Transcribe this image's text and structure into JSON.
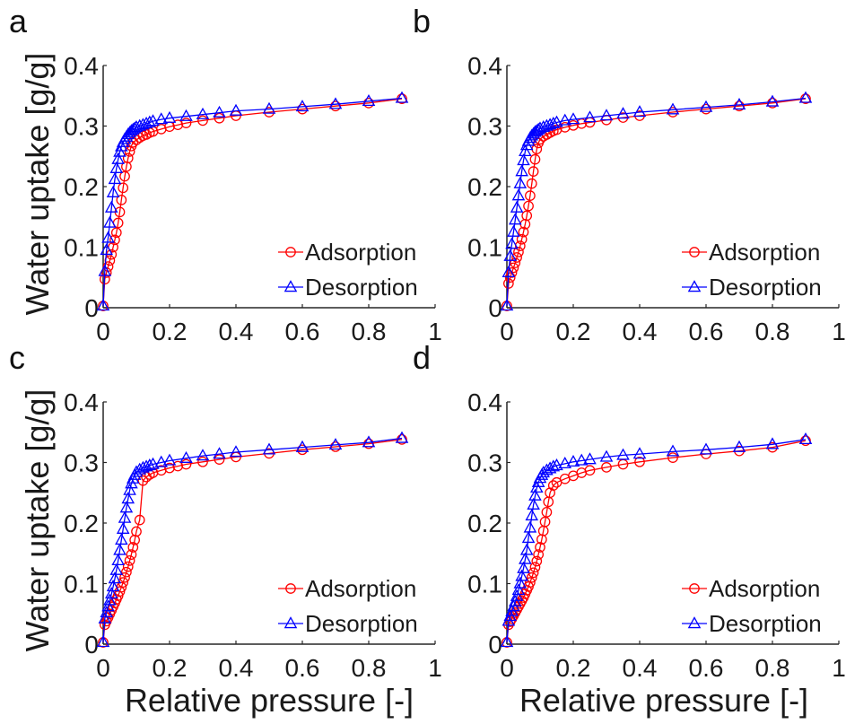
{
  "chart_data": [
    {
      "panel_label": "a",
      "type": "line",
      "xlim": [
        0,
        1
      ],
      "ylim": [
        0,
        0.4
      ],
      "xticks": [
        "0",
        "0.2",
        "0.4",
        "0.6",
        "0.8",
        "1"
      ],
      "yticks": [
        "0",
        "0.1",
        "0.2",
        "0.3",
        "0.4"
      ],
      "xlabel": "",
      "ylabel": "Water uptake [g/g]",
      "legend": "bottom-right",
      "series": [
        {
          "name": "Adsorption",
          "color": "#ff0000",
          "marker": "circle",
          "x": [
            0,
            0.005,
            0.01,
            0.015,
            0.02,
            0.025,
            0.03,
            0.035,
            0.04,
            0.045,
            0.05,
            0.055,
            0.06,
            0.065,
            0.07,
            0.075,
            0.08,
            0.085,
            0.09,
            0.1,
            0.11,
            0.12,
            0.13,
            0.14,
            0.15,
            0.175,
            0.2,
            0.225,
            0.25,
            0.3,
            0.35,
            0.4,
            0.5,
            0.6,
            0.7,
            0.8,
            0.9
          ],
          "y": [
            0.003,
            0.047,
            0.058,
            0.068,
            0.078,
            0.088,
            0.1,
            0.112,
            0.124,
            0.14,
            0.158,
            0.178,
            0.198,
            0.217,
            0.233,
            0.247,
            0.258,
            0.267,
            0.273,
            0.277,
            0.281,
            0.284,
            0.286,
            0.289,
            0.291,
            0.295,
            0.299,
            0.302,
            0.305,
            0.309,
            0.313,
            0.317,
            0.323,
            0.328,
            0.333,
            0.338,
            0.345
          ]
        },
        {
          "name": "Desorption",
          "color": "#0000ff",
          "marker": "triangle",
          "x": [
            0.9,
            0.8,
            0.7,
            0.6,
            0.5,
            0.4,
            0.35,
            0.3,
            0.25,
            0.2,
            0.175,
            0.15,
            0.14,
            0.13,
            0.12,
            0.11,
            0.1,
            0.095,
            0.09,
            0.085,
            0.08,
            0.075,
            0.07,
            0.065,
            0.06,
            0.055,
            0.05,
            0.045,
            0.04,
            0.035,
            0.03,
            0.025,
            0.02,
            0.015,
            0.01,
            0.005,
            0
          ],
          "y": [
            0.346,
            0.341,
            0.336,
            0.332,
            0.328,
            0.325,
            0.322,
            0.319,
            0.316,
            0.313,
            0.311,
            0.308,
            0.306,
            0.304,
            0.302,
            0.3,
            0.298,
            0.296,
            0.294,
            0.292,
            0.289,
            0.286,
            0.282,
            0.278,
            0.273,
            0.266,
            0.257,
            0.245,
            0.23,
            0.212,
            0.19,
            0.165,
            0.14,
            0.115,
            0.095,
            0.06,
            0.003
          ]
        }
      ]
    },
    {
      "panel_label": "b",
      "type": "line",
      "xlim": [
        0,
        1
      ],
      "ylim": [
        0,
        0.4
      ],
      "xticks": [
        "0",
        "0.2",
        "0.4",
        "0.6",
        "0.8",
        "1"
      ],
      "yticks": [
        "0",
        "0.1",
        "0.2",
        "0.3",
        "0.4"
      ],
      "xlabel": "",
      "ylabel": "",
      "legend": "bottom-right",
      "series": [
        {
          "name": "Adsorption",
          "color": "#ff0000",
          "marker": "circle",
          "x": [
            0,
            0.005,
            0.01,
            0.015,
            0.02,
            0.025,
            0.03,
            0.035,
            0.04,
            0.045,
            0.05,
            0.055,
            0.06,
            0.065,
            0.07,
            0.075,
            0.08,
            0.085,
            0.09,
            0.095,
            0.1,
            0.11,
            0.12,
            0.13,
            0.14,
            0.15,
            0.175,
            0.2,
            0.225,
            0.25,
            0.3,
            0.35,
            0.4,
            0.5,
            0.6,
            0.7,
            0.8,
            0.9
          ],
          "y": [
            0.003,
            0.04,
            0.05,
            0.058,
            0.066,
            0.074,
            0.083,
            0.092,
            0.102,
            0.113,
            0.125,
            0.138,
            0.152,
            0.168,
            0.185,
            0.205,
            0.225,
            0.245,
            0.262,
            0.272,
            0.278,
            0.283,
            0.286,
            0.289,
            0.292,
            0.294,
            0.298,
            0.301,
            0.304,
            0.306,
            0.31,
            0.314,
            0.317,
            0.323,
            0.328,
            0.333,
            0.338,
            0.345
          ]
        },
        {
          "name": "Desorption",
          "color": "#0000ff",
          "marker": "triangle",
          "x": [
            0.9,
            0.8,
            0.7,
            0.6,
            0.5,
            0.4,
            0.35,
            0.3,
            0.25,
            0.2,
            0.175,
            0.15,
            0.14,
            0.13,
            0.12,
            0.11,
            0.1,
            0.095,
            0.09,
            0.085,
            0.08,
            0.075,
            0.07,
            0.065,
            0.06,
            0.055,
            0.05,
            0.045,
            0.04,
            0.035,
            0.03,
            0.025,
            0.02,
            0.015,
            0.01,
            0.005,
            0
          ],
          "y": [
            0.346,
            0.34,
            0.335,
            0.331,
            0.327,
            0.323,
            0.32,
            0.317,
            0.314,
            0.311,
            0.309,
            0.306,
            0.304,
            0.302,
            0.3,
            0.298,
            0.296,
            0.294,
            0.292,
            0.29,
            0.287,
            0.284,
            0.28,
            0.275,
            0.268,
            0.258,
            0.243,
            0.225,
            0.205,
            0.185,
            0.165,
            0.145,
            0.125,
            0.105,
            0.085,
            0.058,
            0.003
          ]
        }
      ]
    },
    {
      "panel_label": "c",
      "type": "line",
      "xlim": [
        0,
        1
      ],
      "ylim": [
        0,
        0.4
      ],
      "xticks": [
        "0",
        "0.2",
        "0.4",
        "0.6",
        "0.8",
        "1"
      ],
      "yticks": [
        "0",
        "0.1",
        "0.2",
        "0.3",
        "0.4"
      ],
      "xlabel": "Relative pressure [-]",
      "ylabel": "Water uptake [g/g]",
      "legend": "bottom-right",
      "series": [
        {
          "name": "Adsorption",
          "color": "#ff0000",
          "marker": "circle",
          "x": [
            0,
            0.005,
            0.01,
            0.015,
            0.02,
            0.025,
            0.03,
            0.035,
            0.04,
            0.045,
            0.05,
            0.055,
            0.06,
            0.065,
            0.07,
            0.075,
            0.08,
            0.085,
            0.09,
            0.095,
            0.1,
            0.11,
            0.12,
            0.13,
            0.14,
            0.15,
            0.175,
            0.2,
            0.225,
            0.25,
            0.3,
            0.35,
            0.4,
            0.5,
            0.6,
            0.7,
            0.8,
            0.9
          ],
          "y": [
            0.003,
            0.032,
            0.038,
            0.044,
            0.05,
            0.056,
            0.062,
            0.068,
            0.074,
            0.08,
            0.087,
            0.094,
            0.102,
            0.11,
            0.119,
            0.128,
            0.138,
            0.148,
            0.16,
            0.172,
            0.186,
            0.205,
            0.27,
            0.276,
            0.28,
            0.283,
            0.287,
            0.291,
            0.294,
            0.297,
            0.301,
            0.305,
            0.309,
            0.315,
            0.321,
            0.326,
            0.331,
            0.338
          ]
        },
        {
          "name": "Desorption",
          "color": "#0000ff",
          "marker": "triangle",
          "x": [
            0.9,
            0.8,
            0.7,
            0.6,
            0.5,
            0.4,
            0.35,
            0.3,
            0.25,
            0.2,
            0.175,
            0.15,
            0.14,
            0.13,
            0.12,
            0.11,
            0.1,
            0.095,
            0.09,
            0.085,
            0.08,
            0.075,
            0.07,
            0.065,
            0.06,
            0.055,
            0.05,
            0.045,
            0.04,
            0.035,
            0.03,
            0.025,
            0.02,
            0.015,
            0.01,
            0.005,
            0
          ],
          "y": [
            0.34,
            0.333,
            0.329,
            0.325,
            0.321,
            0.317,
            0.314,
            0.311,
            0.307,
            0.303,
            0.3,
            0.297,
            0.295,
            0.293,
            0.291,
            0.288,
            0.284,
            0.279,
            0.273,
            0.265,
            0.254,
            0.24,
            0.225,
            0.208,
            0.19,
            0.172,
            0.155,
            0.138,
            0.122,
            0.108,
            0.095,
            0.083,
            0.072,
            0.062,
            0.052,
            0.042,
            0.003
          ]
        }
      ]
    },
    {
      "panel_label": "d",
      "type": "line",
      "xlim": [
        0,
        1
      ],
      "ylim": [
        0,
        0.4
      ],
      "xticks": [
        "0",
        "0.2",
        "0.4",
        "0.6",
        "0.8",
        "1"
      ],
      "yticks": [
        "0",
        "0.1",
        "0.2",
        "0.3",
        "0.4"
      ],
      "xlabel": "Relative pressure [-]",
      "ylabel": "",
      "legend": "bottom-right",
      "series": [
        {
          "name": "Adsorption",
          "color": "#ff0000",
          "marker": "circle",
          "x": [
            0,
            0.005,
            0.01,
            0.015,
            0.02,
            0.025,
            0.03,
            0.035,
            0.04,
            0.045,
            0.05,
            0.055,
            0.06,
            0.065,
            0.07,
            0.075,
            0.08,
            0.085,
            0.09,
            0.095,
            0.1,
            0.105,
            0.11,
            0.115,
            0.12,
            0.125,
            0.13,
            0.14,
            0.15,
            0.175,
            0.2,
            0.225,
            0.25,
            0.3,
            0.35,
            0.4,
            0.5,
            0.6,
            0.7,
            0.8,
            0.9
          ],
          "y": [
            0.003,
            0.032,
            0.037,
            0.042,
            0.047,
            0.052,
            0.057,
            0.062,
            0.067,
            0.072,
            0.077,
            0.083,
            0.089,
            0.095,
            0.102,
            0.11,
            0.118,
            0.127,
            0.137,
            0.148,
            0.16,
            0.173,
            0.187,
            0.202,
            0.218,
            0.235,
            0.25,
            0.262,
            0.267,
            0.273,
            0.278,
            0.283,
            0.287,
            0.292,
            0.297,
            0.301,
            0.308,
            0.314,
            0.319,
            0.325,
            0.336
          ]
        },
        {
          "name": "Desorption",
          "color": "#0000ff",
          "marker": "triangle",
          "x": [
            0.9,
            0.8,
            0.7,
            0.6,
            0.5,
            0.4,
            0.35,
            0.3,
            0.25,
            0.225,
            0.2,
            0.175,
            0.15,
            0.14,
            0.13,
            0.12,
            0.11,
            0.105,
            0.1,
            0.095,
            0.09,
            0.085,
            0.08,
            0.075,
            0.07,
            0.065,
            0.06,
            0.055,
            0.05,
            0.045,
            0.04,
            0.035,
            0.03,
            0.025,
            0.02,
            0.015,
            0.01,
            0.005,
            0
          ],
          "y": [
            0.338,
            0.33,
            0.325,
            0.321,
            0.318,
            0.314,
            0.312,
            0.309,
            0.305,
            0.303,
            0.301,
            0.298,
            0.295,
            0.293,
            0.29,
            0.287,
            0.283,
            0.279,
            0.274,
            0.267,
            0.258,
            0.245,
            0.23,
            0.212,
            0.192,
            0.175,
            0.155,
            0.14,
            0.125,
            0.112,
            0.1,
            0.089,
            0.079,
            0.07,
            0.062,
            0.054,
            0.046,
            0.038,
            0.003
          ]
        }
      ]
    }
  ]
}
